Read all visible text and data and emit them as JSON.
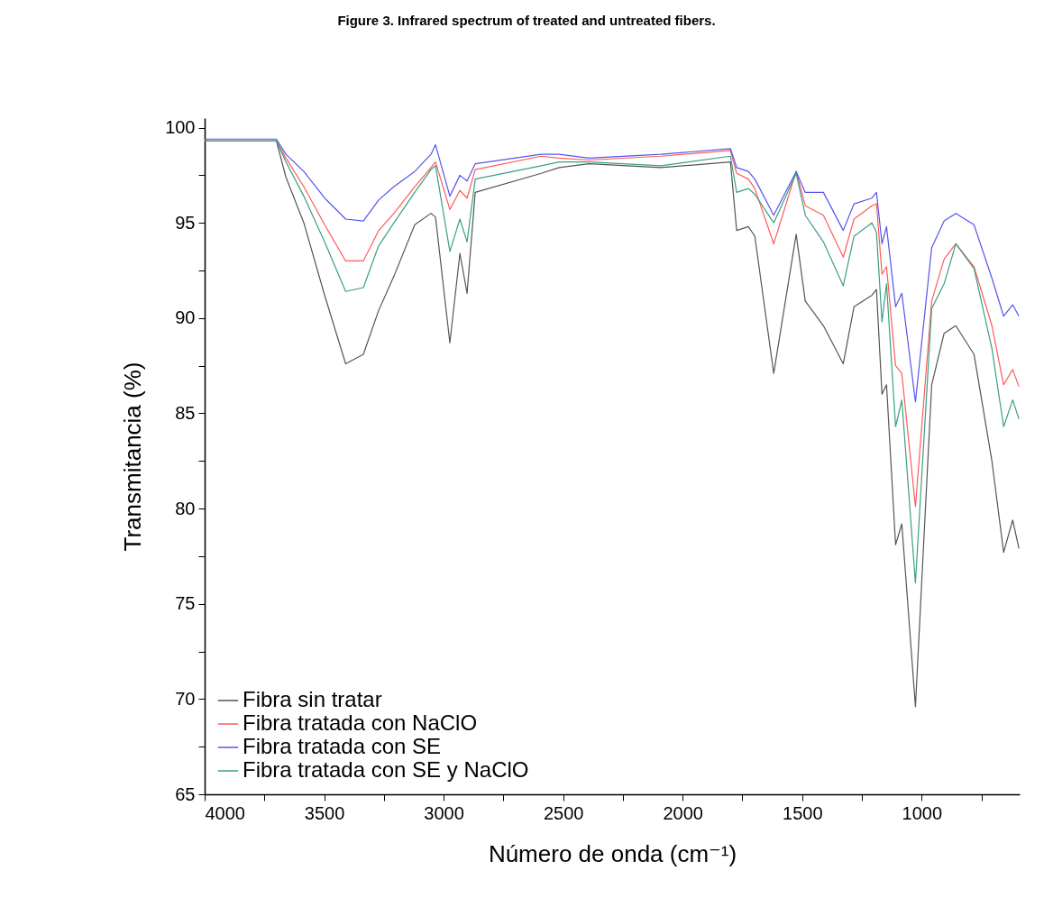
{
  "chart_data": {
    "type": "line",
    "title": "Figure 3. Infrared spectrum of treated and untreated fibers.",
    "xlabel": "Número de onda (cm⁻¹)",
    "ylabel": "Transmitancia (%)",
    "x": [
      4000,
      3700,
      3660,
      3585,
      3498,
      3410,
      3336,
      3272,
      3208,
      3121,
      3053,
      3034,
      2974,
      2932,
      2902,
      2868,
      2592,
      2517,
      2392,
      2091,
      1800,
      1774,
      1725,
      1698,
      1619,
      1525,
      1487,
      1411,
      1328,
      1283,
      1208,
      1189,
      1166,
      1147,
      1109,
      1083,
      1026,
      958,
      906,
      857,
      781,
      706,
      657,
      619,
      593
    ],
    "series": [
      {
        "name": "Fibra sin tratar",
        "color": "#555555",
        "values": [
          99.3,
          99.3,
          97.4,
          95.0,
          91.2,
          87.6,
          88.1,
          90.4,
          92.2,
          94.9,
          95.5,
          95.3,
          88.7,
          93.4,
          91.3,
          96.6,
          97.6,
          97.9,
          98.1,
          97.9,
          98.2,
          94.6,
          94.8,
          94.3,
          87.1,
          94.4,
          90.9,
          89.6,
          87.6,
          90.6,
          91.2,
          91.5,
          86.0,
          86.5,
          78.1,
          79.2,
          69.6,
          86.5,
          89.2,
          89.6,
          88.1,
          82.5,
          77.7,
          79.4,
          77.9
        ]
      },
      {
        "name": "Fibra tratada con NaClO",
        "color": "#ff5a5a",
        "values": [
          99.3,
          99.3,
          98.4,
          96.9,
          94.9,
          93.0,
          93.0,
          94.6,
          95.5,
          96.9,
          97.9,
          98.2,
          95.7,
          96.7,
          96.3,
          97.8,
          98.5,
          98.4,
          98.3,
          98.5,
          98.8,
          97.6,
          97.3,
          96.8,
          93.9,
          97.7,
          95.9,
          95.4,
          93.2,
          95.2,
          95.9,
          96.0,
          92.3,
          92.7,
          87.5,
          87.1,
          80.1,
          90.9,
          93.1,
          93.9,
          92.7,
          89.6,
          86.5,
          87.3,
          86.4
        ]
      },
      {
        "name": "Fibra tratada con SE",
        "color": "#5555ee",
        "values": [
          99.4,
          99.4,
          98.6,
          97.7,
          96.3,
          95.2,
          95.1,
          96.2,
          96.9,
          97.7,
          98.6,
          99.1,
          96.4,
          97.5,
          97.2,
          98.1,
          98.6,
          98.6,
          98.4,
          98.6,
          98.9,
          97.9,
          97.7,
          97.3,
          95.4,
          97.7,
          96.6,
          96.6,
          94.6,
          96.0,
          96.3,
          96.6,
          93.9,
          94.8,
          90.6,
          91.3,
          85.6,
          93.7,
          95.1,
          95.5,
          94.9,
          92.1,
          90.1,
          90.7,
          90.1
        ]
      },
      {
        "name": "Fibra tratada con SE y NaClO",
        "color": "#3a9e86",
        "values": [
          99.3,
          99.3,
          98.2,
          96.4,
          94.0,
          91.4,
          91.6,
          93.8,
          95.0,
          96.6,
          97.8,
          98.0,
          93.5,
          95.2,
          94.0,
          97.3,
          98.0,
          98.2,
          98.2,
          98.0,
          98.5,
          96.6,
          96.8,
          96.5,
          95.0,
          97.6,
          95.4,
          94.0,
          91.7,
          94.3,
          95.0,
          94.5,
          89.8,
          91.8,
          84.3,
          85.7,
          76.1,
          90.5,
          91.8,
          93.9,
          92.6,
          88.4,
          84.3,
          85.7,
          84.7
        ]
      }
    ],
    "xlim": [
      4000,
      590
    ],
    "xticks": [
      4000,
      {
        "value": 3750,
        "label": null
      },
      3500,
      {
        "value": 3250,
        "label": null
      },
      3000,
      {
        "value": 2750,
        "label": null
      },
      2500,
      {
        "value": 2250,
        "label": null
      },
      2000,
      {
        "value": 1750,
        "label": null
      },
      1500,
      {
        "value": 1250,
        "label": null
      },
      1000,
      {
        "value": 750,
        "label": null
      }
    ],
    "ylim": [
      65,
      100.5
    ],
    "yticks": [
      65,
      {
        "value": 67.5,
        "label": null
      },
      70,
      {
        "value": 72.5,
        "label": null
      },
      75,
      {
        "value": 77.5,
        "label": null
      },
      80,
      {
        "value": 82.5,
        "label": null
      },
      85,
      {
        "value": 87.5,
        "label": null
      },
      90,
      {
        "value": 92.5,
        "label": null
      },
      95,
      {
        "value": 97.5,
        "label": null
      },
      100
    ],
    "grid": false,
    "legend": "bottom left",
    "marker": "none",
    "line_style": "solid"
  }
}
